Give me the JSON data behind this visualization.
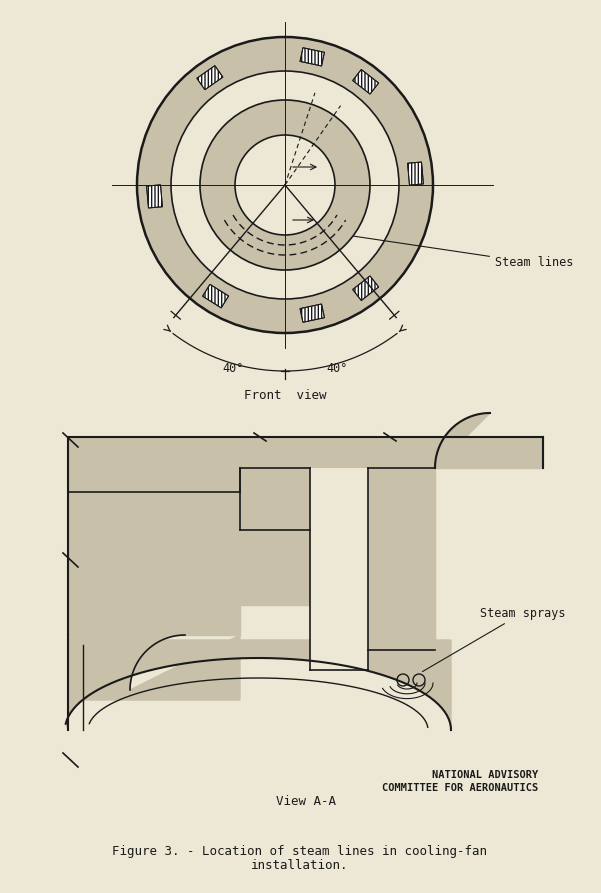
{
  "bg_color": "#ede8d5",
  "line_color": "#1a1a1a",
  "fill_light": "#c8c0a8",
  "fill_dark": "#b0a890",
  "title_line1": "Figure 3. - Location of steam lines in cooling-fan",
  "title_line2": "installation.",
  "front_view_label": "Front  view",
  "view_aa_label": "View A-A",
  "steam_lines_label": "Steam lines",
  "steam_sprays_label": "Steam sprays",
  "naca_line1": "NATIONAL ADVISORY",
  "naca_line2": "COMMITTEE FOR AERONAUTICS",
  "angle_left": "40°",
  "angle_right": "40°"
}
